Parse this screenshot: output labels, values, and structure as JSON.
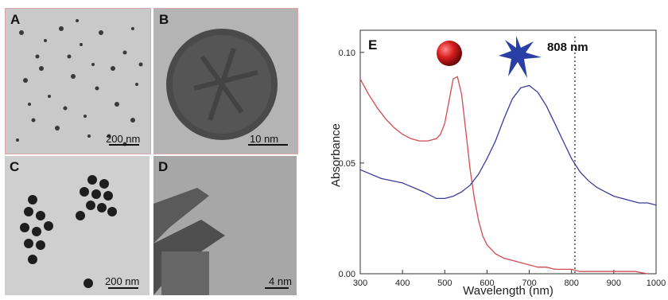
{
  "panels": {
    "A": {
      "letter": "A",
      "scale": "200 nm"
    },
    "B": {
      "letter": "B",
      "scale": "10 nm"
    },
    "C": {
      "letter": "C",
      "scale": "200 nm"
    },
    "D": {
      "letter": "D",
      "scale": "4 nm"
    }
  },
  "chart_data": {
    "type": "line",
    "panel_letter": "E",
    "xlabel": "Wavelength (nm)",
    "ylabel": "Absorbance",
    "xlim": [
      300,
      1000
    ],
    "ylim": [
      0.0,
      0.11
    ],
    "xticks": [
      300,
      400,
      500,
      600,
      700,
      800,
      900,
      1000
    ],
    "yticks": [
      0.0,
      0.05,
      0.1
    ],
    "ytick_labels": [
      "0.00",
      "0.05",
      "0.10"
    ],
    "grid": false,
    "annotation": {
      "text": "808 nm",
      "x": 808,
      "style": "dotted vertical line"
    },
    "series": [
      {
        "color": "#d24a52",
        "icon": "red-sphere-icon",
        "x": [
          300,
          320,
          340,
          360,
          380,
          400,
          420,
          440,
          460,
          480,
          490,
          500,
          510,
          520,
          530,
          540,
          550,
          560,
          570,
          580,
          590,
          600,
          620,
          640,
          660,
          680,
          700,
          720,
          740,
          760,
          780,
          800,
          820,
          850,
          900,
          950,
          980
        ],
        "y": [
          0.088,
          0.081,
          0.075,
          0.07,
          0.066,
          0.063,
          0.061,
          0.06,
          0.06,
          0.061,
          0.063,
          0.068,
          0.078,
          0.088,
          0.089,
          0.081,
          0.064,
          0.047,
          0.034,
          0.024,
          0.017,
          0.013,
          0.009,
          0.007,
          0.006,
          0.005,
          0.004,
          0.003,
          0.003,
          0.002,
          0.002,
          0.002,
          0.001,
          0.001,
          0.001,
          0.001,
          0.0
        ]
      },
      {
        "color": "#3c3c98",
        "icon": "blue-star-icon",
        "x": [
          300,
          350,
          400,
          450,
          480,
          500,
          520,
          540,
          560,
          580,
          600,
          620,
          640,
          660,
          680,
          700,
          720,
          740,
          760,
          780,
          800,
          820,
          840,
          860,
          880,
          900,
          920,
          940,
          960,
          980,
          1000
        ],
        "y": [
          0.047,
          0.043,
          0.041,
          0.037,
          0.034,
          0.034,
          0.035,
          0.037,
          0.04,
          0.045,
          0.052,
          0.06,
          0.07,
          0.079,
          0.084,
          0.085,
          0.082,
          0.076,
          0.068,
          0.06,
          0.052,
          0.046,
          0.042,
          0.039,
          0.037,
          0.035,
          0.034,
          0.033,
          0.032,
          0.032,
          0.031
        ]
      }
    ]
  }
}
